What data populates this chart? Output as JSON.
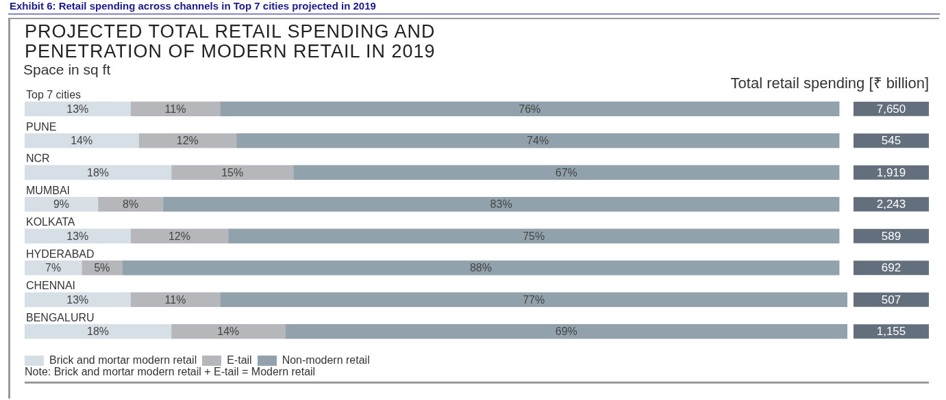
{
  "chart_data": {
    "type": "bar",
    "orientation": "horizontal",
    "stacked": true,
    "title": "PROJECTED TOTAL RETAIL SPENDING AND PENETRATION OF MODERN RETAIL IN 2019",
    "subtitle": "Space in sq ft",
    "categories": [
      "Top 7 cities",
      "PUNE",
      "NCR",
      "MUMBAI",
      "KOLKATA",
      "HYDERABAD",
      "CHENNAI",
      "BENGALURU"
    ],
    "series": [
      {
        "name": "Brick and mortar modern retail",
        "color": "#d6dfe6",
        "values": [
          13,
          14,
          18,
          9,
          13,
          7,
          13,
          18
        ],
        "value_labels": [
          "13%",
          "14%",
          "18%",
          "9%",
          "13%",
          "7%",
          "13%",
          "18%"
        ]
      },
      {
        "name": "E-tail",
        "color": "#b6b7bb",
        "values": [
          11,
          12,
          15,
          8,
          12,
          5,
          11,
          14
        ],
        "value_labels": [
          "11%",
          "12%",
          "15%",
          "8%",
          "12%",
          "5%",
          "11%",
          "14%"
        ]
      },
      {
        "name": "Non-modern retail",
        "color": "#91a2ad",
        "values": [
          76,
          74,
          67,
          83,
          75,
          88,
          77,
          69
        ],
        "value_labels": [
          "76%",
          "74%",
          "67%",
          "83%",
          "75%",
          "88%",
          "77%",
          "69%"
        ]
      }
    ],
    "legend": "bottom left",
    "annotations": [
      "Exhibit 6: Retail spending across channels in Top 7 cities projected in 2019",
      "Total retail spending [₹ billion]",
      "Note: Brick and mortar modern retail + E-tail =  Modern retail",
      "7,650",
      "545",
      "1,919",
      "2,243",
      "589",
      "692",
      "507",
      "1,155"
    ]
  }
}
